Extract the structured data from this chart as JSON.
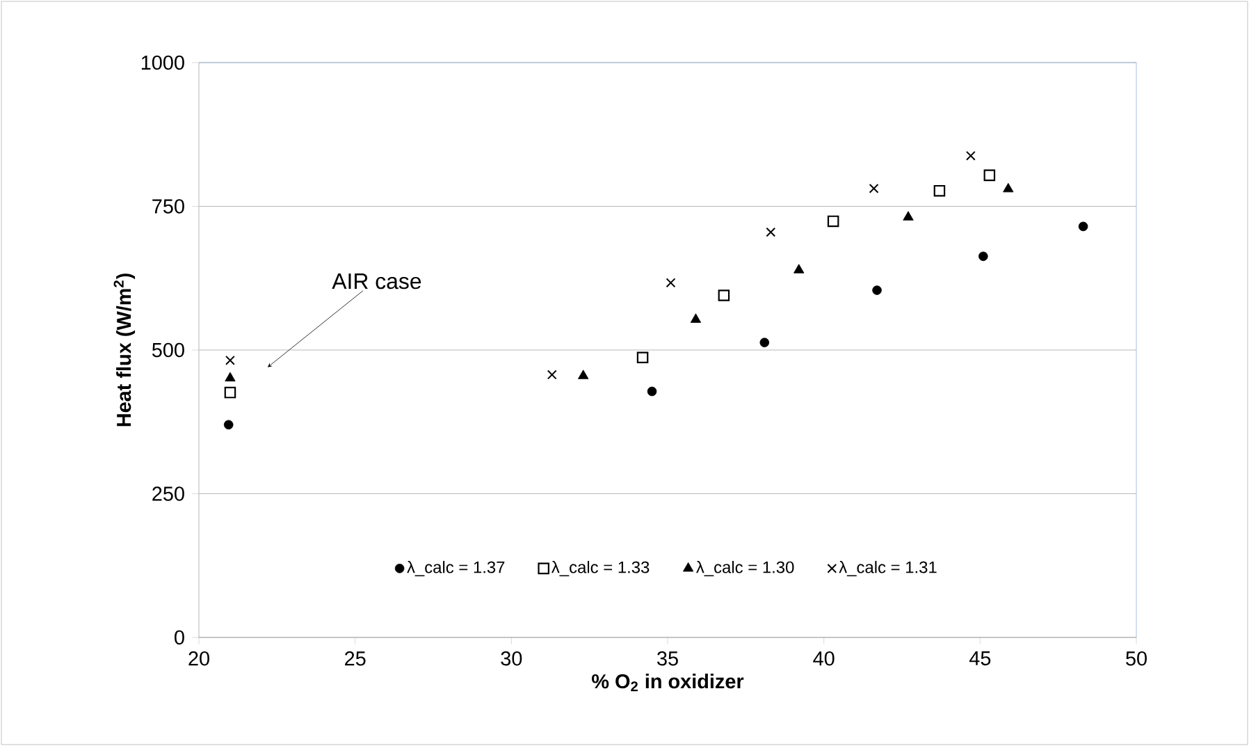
{
  "chart_data": {
    "type": "scatter",
    "xlabel": "% O$_{2}$ in oxidizer",
    "ylabel": "Heat flux (W/m$^{2}$)",
    "xlim": [
      20,
      50
    ],
    "xticks": [
      20,
      25,
      30,
      35,
      40,
      45,
      50
    ],
    "ylim": [
      0,
      1000
    ],
    "yticks": [
      0,
      250,
      500,
      750,
      1000
    ],
    "grid": "y",
    "legend": "bottom",
    "series": [
      {
        "name": "λ_calc = 1.37",
        "color": "#000000",
        "marker": "circle",
        "x": [
          20.95,
          34.5,
          38.1,
          41.7,
          45.1,
          48.3
        ],
        "values": [
          370,
          428,
          513,
          604,
          663,
          715
        ]
      },
      {
        "name": "λ_calc = 1.33",
        "color": "#000000",
        "marker": "square",
        "x": [
          21.0,
          34.2,
          36.8,
          40.3,
          43.7,
          45.3
        ],
        "values": [
          426,
          487,
          595,
          724,
          777,
          804
        ]
      },
      {
        "name": "λ_calc = 1.30",
        "color": "#000000",
        "marker": "triangle",
        "x": [
          21.0,
          32.3,
          35.9,
          39.2,
          42.7,
          45.9
        ],
        "values": [
          451,
          455,
          553,
          639,
          731,
          780
        ]
      },
      {
        "name": "λ_calc = 1.31",
        "color": "#000000",
        "marker": "cross",
        "x": [
          21.0,
          31.3,
          35.1,
          38.3,
          41.6,
          44.7
        ],
        "values": [
          482,
          457,
          617,
          705,
          781,
          838
        ]
      }
    ],
    "annotations": [
      {
        "text": "AIR case",
        "x": 22.2,
        "y": 470
      }
    ]
  }
}
